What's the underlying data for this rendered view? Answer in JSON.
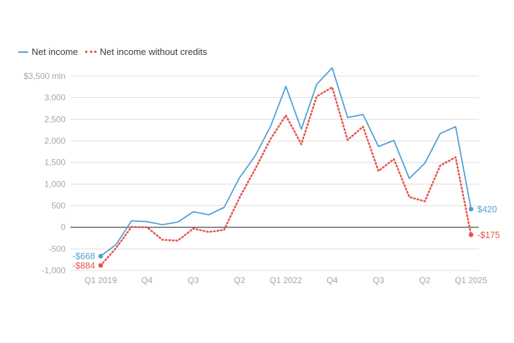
{
  "legend": {
    "series1": "Net income",
    "series2": "Net income without credits"
  },
  "colors": {
    "series1": "#4f9fd6",
    "series2": "#e8534a",
    "grid": "#dddddd",
    "zero": "#333333",
    "tick": "#a6a6a6"
  },
  "chart_data": {
    "type": "line",
    "x": [
      "Q1 2019",
      "Q2 2019",
      "Q3 2019",
      "Q4 2019",
      "Q1 2020",
      "Q2 2020",
      "Q3 2020",
      "Q4 2020",
      "Q1 2021",
      "Q2 2021",
      "Q3 2021",
      "Q4 2021",
      "Q1 2022",
      "Q2 2022",
      "Q3 2022",
      "Q4 2022",
      "Q1 2023",
      "Q2 2023",
      "Q3 2023",
      "Q4 2023",
      "Q1 2024",
      "Q2 2024",
      "Q3 2024",
      "Q4 2024",
      "Q1 2025"
    ],
    "x_tick_labels": [
      {
        "index": 0,
        "label": "Q1 2019"
      },
      {
        "index": 3,
        "label": "Q4"
      },
      {
        "index": 6,
        "label": "Q3"
      },
      {
        "index": 9,
        "label": "Q2"
      },
      {
        "index": 12,
        "label": "Q1 2022"
      },
      {
        "index": 15,
        "label": "Q4"
      },
      {
        "index": 18,
        "label": "Q3"
      },
      {
        "index": 21,
        "label": "Q2"
      },
      {
        "index": 24,
        "label": "Q1 2025"
      }
    ],
    "series": [
      {
        "name": "Net income",
        "values": [
          -668,
          -400,
          150,
          130,
          60,
          120,
          360,
          290,
          460,
          1150,
          1650,
          2330,
          3260,
          2270,
          3310,
          3690,
          2540,
          2610,
          1870,
          2010,
          1130,
          1480,
          2170,
          2330,
          420
        ]
      },
      {
        "name": "Net income without credits",
        "values": [
          -884,
          -480,
          10,
          0,
          -290,
          -310,
          -30,
          -110,
          -60,
          690,
          1340,
          2040,
          2590,
          1920,
          3030,
          3240,
          2020,
          2330,
          1300,
          1580,
          700,
          600,
          1430,
          1620,
          -175
        ]
      }
    ],
    "y_ticks": [
      {
        "value": 3500,
        "label": "$3,500 mln"
      },
      {
        "value": 3000,
        "label": "3,000"
      },
      {
        "value": 2500,
        "label": "2,500"
      },
      {
        "value": 2000,
        "label": "2,000"
      },
      {
        "value": 1500,
        "label": "1,500"
      },
      {
        "value": 1000,
        "label": "1,000"
      },
      {
        "value": 500,
        "label": "500"
      },
      {
        "value": 0,
        "label": "0"
      },
      {
        "value": -500,
        "label": "-500"
      },
      {
        "value": -1000,
        "label": "-1,000"
      }
    ],
    "ylim": [
      -1000,
      3500
    ],
    "annotations": [
      {
        "series": 0,
        "index": 0,
        "label": "-$668"
      },
      {
        "series": 1,
        "index": 0,
        "label": "-$884"
      },
      {
        "series": 0,
        "index": 24,
        "label": "$420"
      },
      {
        "series": 1,
        "index": 24,
        "label": "-$175"
      }
    ],
    "grid": true,
    "legend_position": "top-left"
  }
}
